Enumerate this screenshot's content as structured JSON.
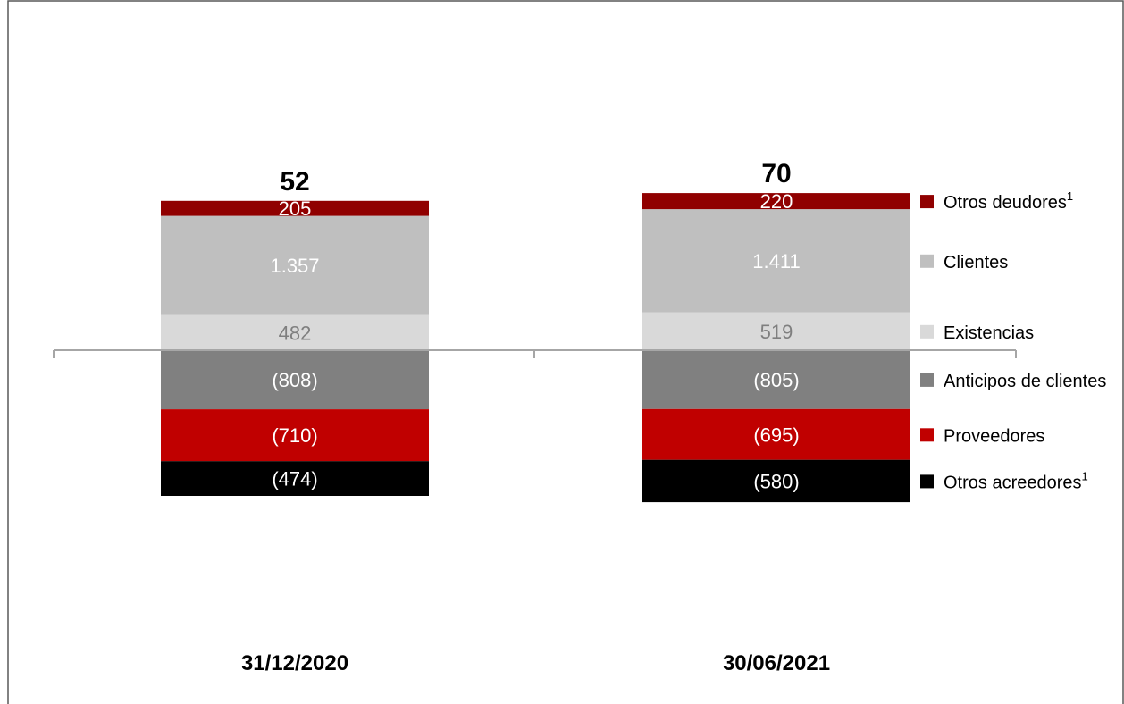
{
  "chart_data": {
    "type": "bar",
    "stacked": true,
    "categories": [
      "31/12/2020",
      "30/06/2021"
    ],
    "totals": [
      "52",
      "70"
    ],
    "series": [
      {
        "name": "Existencias",
        "values": [
          482,
          519
        ],
        "labels": [
          "482",
          "519"
        ],
        "color": "#d9d9d9",
        "label_color": "#7f7f7f"
      },
      {
        "name": "Clientes",
        "values": [
          1357,
          1411
        ],
        "labels": [
          "1.357",
          "1.411"
        ],
        "color": "#bfbfbf",
        "label_color": "#ffffff"
      },
      {
        "name": "Otros deudores",
        "sup": "1",
        "values": [
          205,
          220
        ],
        "labels": [
          "205",
          "220"
        ],
        "color": "#900000",
        "label_color": "#ffffff"
      },
      {
        "name": "Anticipos de clientes",
        "values": [
          -808,
          -805
        ],
        "labels": [
          "(808)",
          "(805)"
        ],
        "color": "#808080",
        "label_color": "#ffffff"
      },
      {
        "name": "Proveedores",
        "values": [
          -710,
          -695
        ],
        "labels": [
          "(710)",
          "(695)"
        ],
        "color": "#c00000",
        "label_color": "#ffffff"
      },
      {
        "name": "Otros acreedores",
        "sup": "1",
        "values": [
          -474,
          -580
        ],
        "labels": [
          "(474)",
          "(580)"
        ],
        "color": "#000000",
        "label_color": "#ffffff"
      }
    ],
    "legend_position": "right",
    "grid": false,
    "frame_color": "#595959",
    "axis_color": "#a6a6a6"
  }
}
